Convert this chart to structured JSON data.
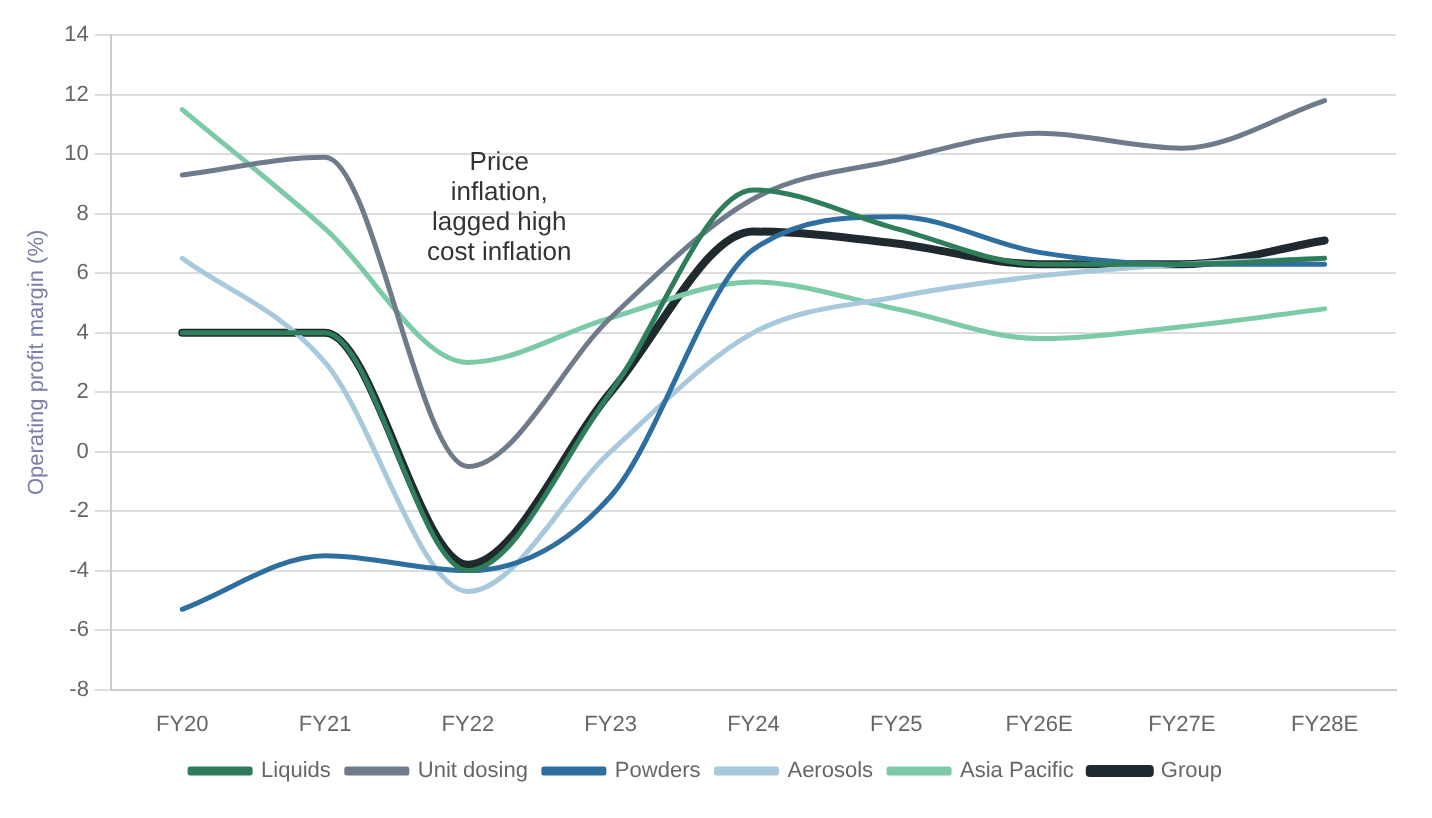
{
  "chart_data": {
    "type": "line",
    "ylabel": "Operating profit margin (%)",
    "annotations": [
      "Price\ninflation,\nlagged high\ncost inflation"
    ],
    "categories": [
      "FY20",
      "FY21",
      "FY22",
      "FY23",
      "FY24",
      "FY25",
      "FY26E",
      "FY27E",
      "FY28E"
    ],
    "series": [
      {
        "name": "Liquids",
        "color": "#2e7d5b",
        "values": [
          4,
          4,
          -4,
          2,
          8.8,
          7.5,
          6.3,
          6.3,
          6.5
        ]
      },
      {
        "name": "Unit dosing",
        "color": "#6e7b8b",
        "values": [
          9.3,
          9.9,
          -0.5,
          4.5,
          8.5,
          9.8,
          10.7,
          10.2,
          11.8
        ]
      },
      {
        "name": "Powders",
        "color": "#2f6f9f",
        "values": [
          -5.3,
          -3.5,
          -4,
          -1.5,
          6.8,
          7.9,
          6.7,
          6.3,
          6.3
        ]
      },
      {
        "name": "Aerosols",
        "color": "#a8c8dc",
        "values": [
          6.5,
          3,
          -4.7,
          0,
          4,
          5.2,
          5.9,
          6.3,
          6.5
        ]
      },
      {
        "name": "Asia Pacific",
        "color": "#7ccaa8",
        "values": [
          11.5,
          7.5,
          3,
          4.5,
          5.7,
          4.8,
          3.8,
          4.2,
          4.8
        ]
      },
      {
        "name": "Group",
        "color": "#1f2a2e",
        "values": [
          4,
          4,
          -3.8,
          2,
          7.4,
          7,
          6.3,
          6.3,
          7.1
        ]
      }
    ],
    "ylim": [
      -8,
      14
    ],
    "yticks": [
      -8,
      -6,
      -4,
      -2,
      0,
      2,
      4,
      6,
      8,
      10,
      12,
      14
    ],
    "grid": "y",
    "legend": "bottom",
    "marker": "none",
    "line_style": "solid"
  }
}
